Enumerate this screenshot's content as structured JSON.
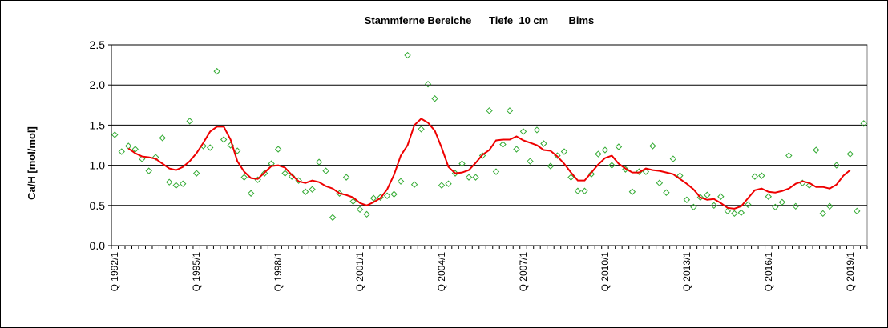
{
  "chart_data": {
    "type": "line",
    "title": "Stammferne Bereiche      Tiefe  10 cm       Bims",
    "y_label": "Ca/H [mol/mol]",
    "categories": [
      "Q 1992/1",
      null,
      null,
      null,
      null,
      null,
      null,
      null,
      null,
      null,
      null,
      null,
      "Q 1995/1",
      null,
      null,
      null,
      null,
      null,
      null,
      null,
      null,
      null,
      null,
      null,
      "Q 1998/1",
      null,
      null,
      null,
      null,
      null,
      null,
      null,
      null,
      null,
      null,
      null,
      "Q 2001/1",
      null,
      null,
      null,
      null,
      null,
      null,
      null,
      null,
      null,
      null,
      null,
      "Q 2004/1",
      null,
      null,
      null,
      null,
      null,
      null,
      null,
      null,
      null,
      null,
      null,
      "Q 2007/1",
      null,
      null,
      null,
      null,
      null,
      null,
      null,
      null,
      null,
      null,
      null,
      "Q 2010/1",
      null,
      null,
      null,
      null,
      null,
      null,
      null,
      null,
      null,
      null,
      null,
      "Q 2013/1",
      null,
      null,
      null,
      null,
      null,
      null,
      null,
      null,
      null,
      null,
      null,
      "Q 2016/1",
      null,
      null,
      null,
      null,
      null,
      null,
      null,
      null,
      null,
      null,
      null,
      "Q 2019/1",
      null,
      null
    ],
    "series": [
      {
        "style": "markers",
        "color": "#33aa33",
        "values": [
          1.38,
          1.17,
          1.24,
          1.2,
          1.08,
          0.93,
          1.1,
          1.34,
          0.79,
          0.75,
          0.77,
          1.55,
          0.9,
          1.24,
          1.22,
          2.17,
          1.32,
          1.25,
          1.18,
          0.85,
          0.65,
          0.82,
          0.9,
          1.02,
          1.2,
          0.9,
          0.86,
          0.81,
          0.67,
          0.7,
          1.04,
          0.93,
          0.35,
          0.65,
          0.85,
          0.55,
          0.45,
          0.39,
          0.59,
          0.6,
          0.62,
          0.64,
          0.8,
          2.37,
          0.76,
          1.45,
          2.01,
          1.83,
          0.75,
          0.77,
          0.9,
          1.02,
          0.85,
          0.85,
          1.12,
          1.68,
          0.92,
          1.26,
          1.68,
          1.2,
          1.42,
          1.05,
          1.44,
          1.27,
          0.99,
          1.12,
          1.17,
          0.85,
          0.68,
          0.68,
          0.89,
          1.14,
          1.19,
          1.0,
          1.23,
          0.95,
          0.67,
          0.92,
          0.92,
          1.24,
          0.78,
          0.66,
          1.08,
          0.87,
          0.57,
          0.48,
          0.6,
          0.63,
          0.5,
          0.61,
          0.43,
          0.4,
          0.41,
          0.51,
          0.86,
          0.87,
          0.61,
          0.48,
          0.54,
          1.12,
          0.49,
          0.78,
          0.75,
          1.19,
          0.4,
          0.49,
          1.0,
          null,
          1.14,
          0.43,
          1.52
        ]
      },
      {
        "style": "line",
        "color": "#ee0000",
        "values": [
          null,
          null,
          1.21,
          1.15,
          1.11,
          1.1,
          1.08,
          1.02,
          0.96,
          0.94,
          0.98,
          1.05,
          1.15,
          1.28,
          1.42,
          1.48,
          1.48,
          1.32,
          1.05,
          0.92,
          0.84,
          0.83,
          0.91,
          0.99,
          1.0,
          0.97,
          0.88,
          0.8,
          0.78,
          0.81,
          0.79,
          0.74,
          0.71,
          0.65,
          0.63,
          0.6,
          0.53,
          0.5,
          0.54,
          0.59,
          0.7,
          0.88,
          1.12,
          1.25,
          1.5,
          1.58,
          1.53,
          1.43,
          1.22,
          0.98,
          0.9,
          0.91,
          0.94,
          1.03,
          1.13,
          1.19,
          1.31,
          1.32,
          1.32,
          1.36,
          1.31,
          1.28,
          1.25,
          1.19,
          1.18,
          1.11,
          1.02,
          0.91,
          0.81,
          0.81,
          0.91,
          1.01,
          1.09,
          1.12,
          1.02,
          0.96,
          0.91,
          0.91,
          0.96,
          0.94,
          0.93,
          0.91,
          0.89,
          0.83,
          0.77,
          0.7,
          0.6,
          0.57,
          0.58,
          0.53,
          0.47,
          0.46,
          0.49,
          0.59,
          0.69,
          0.71,
          0.67,
          0.66,
          0.68,
          0.71,
          0.77,
          0.8,
          0.78,
          0.73,
          0.73,
          0.71,
          0.76,
          0.87,
          0.94,
          null,
          null
        ]
      }
    ],
    "ylim": [
      0,
      2.5
    ],
    "yticks": [
      {
        "value": 0,
        "label": "0.0"
      },
      0.5,
      {
        "value": 1,
        "label": "1.0"
      },
      1.5,
      {
        "value": 2,
        "label": "2.0"
      },
      2.5
    ],
    "grid": true
  }
}
